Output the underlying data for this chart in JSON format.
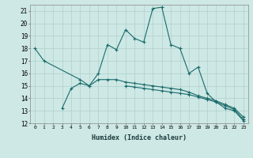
{
  "xlabel": "Humidex (Indice chaleur)",
  "x": [
    0,
    1,
    2,
    3,
    4,
    5,
    6,
    7,
    8,
    9,
    10,
    11,
    12,
    13,
    14,
    15,
    16,
    17,
    18,
    19,
    20,
    21,
    22,
    23
  ],
  "line1": [
    18,
    17,
    null,
    null,
    null,
    15.5,
    15,
    16,
    18.3,
    17.9,
    19.5,
    18.8,
    18.5,
    21.2,
    21.3,
    18.3,
    18,
    16,
    16.5,
    14.4,
    13.7,
    13.2,
    13.0,
    12.2
  ],
  "line2": [
    null,
    null,
    null,
    13.2,
    14.8,
    15.2,
    15.0,
    15.5,
    15.5,
    15.5,
    15.3,
    15.2,
    15.1,
    15.0,
    14.9,
    14.8,
    14.7,
    14.5,
    14.2,
    14.0,
    13.8,
    13.5,
    13.2,
    12.5
  ],
  "line3": [
    null,
    null,
    null,
    null,
    null,
    null,
    null,
    null,
    null,
    null,
    15.0,
    14.9,
    14.8,
    14.7,
    14.6,
    14.5,
    14.4,
    14.3,
    14.1,
    13.9,
    13.7,
    13.4,
    13.1,
    12.3
  ],
  "bg_color": "#cde8e5",
  "grid_color": "#b0d0cc",
  "line_color": "#1a6b6b",
  "ylim": [
    12,
    21.5
  ],
  "yticks": [
    12,
    13,
    14,
    15,
    16,
    17,
    18,
    19,
    20,
    21
  ],
  "xlim": [
    -0.5,
    23.5
  ]
}
